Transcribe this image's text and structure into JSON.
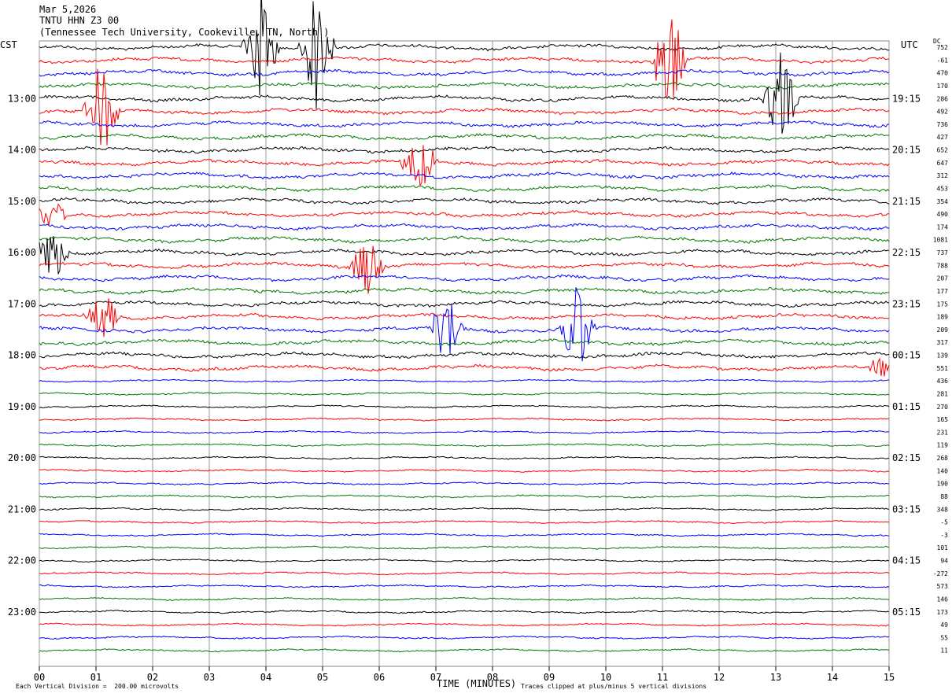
{
  "header": {
    "date": "Mar 5,2026",
    "station": "TNTU HHN Z3 00",
    "location": "(Tennessee Tech University, Cookeville, TN, North )"
  },
  "left_zone_label": "CST",
  "right_zone_label": "UTC",
  "dc_label": "DC",
  "footer": {
    "scale_text": "Each Vertical Division =  200.00 microvolts",
    "xaxis_title": "TIME (MINUTES)",
    "clip_note": "Traces clipped at plus/minus 5 vertical divisions"
  },
  "colors": {
    "cycle": [
      "#000000",
      "#ff0000",
      "#0000ff",
      "#007700"
    ]
  },
  "chart_data": {
    "type": "line",
    "title": "TNTU HHN Z3 00",
    "xlabel": "TIME (MINUTES)",
    "x_ticks": [
      "00",
      "01",
      "02",
      "03",
      "04",
      "05",
      "06",
      "07",
      "08",
      "09",
      "10",
      "11",
      "12",
      "13",
      "14",
      "15"
    ],
    "xlim": [
      0,
      15
    ],
    "left_time_labels": [
      "13:00",
      "14:00",
      "15:00",
      "16:00",
      "17:00",
      "18:00",
      "19:00",
      "20:00",
      "21:00",
      "22:00",
      "23:00"
    ],
    "right_time_labels": [
      "19:15",
      "20:15",
      "21:15",
      "22:15",
      "23:15",
      "00:15",
      "01:15",
      "02:15",
      "03:15",
      "04:15",
      "05:15"
    ],
    "dc_offsets": [
      752,
      -61,
      470,
      170,
      286,
      492,
      736,
      427,
      652,
      647,
      312,
      453,
      354,
      490,
      174,
      1081,
      737,
      788,
      207,
      177,
      175,
      189,
      209,
      317,
      139,
      551,
      436,
      281,
      270,
      165,
      231,
      119,
      268,
      140,
      190,
      88,
      348,
      -5,
      -3,
      101,
      94,
      -272,
      573,
      146,
      173,
      49,
      55,
      11
    ],
    "trace_count": 48,
    "trace_interval_minutes": 15,
    "events": [
      {
        "trace": 0,
        "minute": 3.9,
        "amp": 5
      },
      {
        "trace": 0,
        "minute": 4.9,
        "amp": 5
      },
      {
        "trace": 1,
        "minute": 11.1,
        "amp": 5
      },
      {
        "trace": 4,
        "minute": 13.1,
        "amp": 4
      },
      {
        "trace": 5,
        "minute": 1.1,
        "amp": 4
      },
      {
        "trace": 9,
        "minute": 6.7,
        "amp": 3
      },
      {
        "trace": 13,
        "minute": 0.2,
        "amp": 1.5
      },
      {
        "trace": 16,
        "minute": 0.2,
        "amp": 2.5
      },
      {
        "trace": 17,
        "minute": 5.8,
        "amp": 2.5
      },
      {
        "trace": 21,
        "minute": 1.1,
        "amp": 2.5
      },
      {
        "trace": 22,
        "minute": 7.2,
        "amp": 3
      },
      {
        "trace": 22,
        "minute": 9.5,
        "amp": 4
      },
      {
        "trace": 25,
        "minute": 14.9,
        "amp": 1
      }
    ]
  }
}
